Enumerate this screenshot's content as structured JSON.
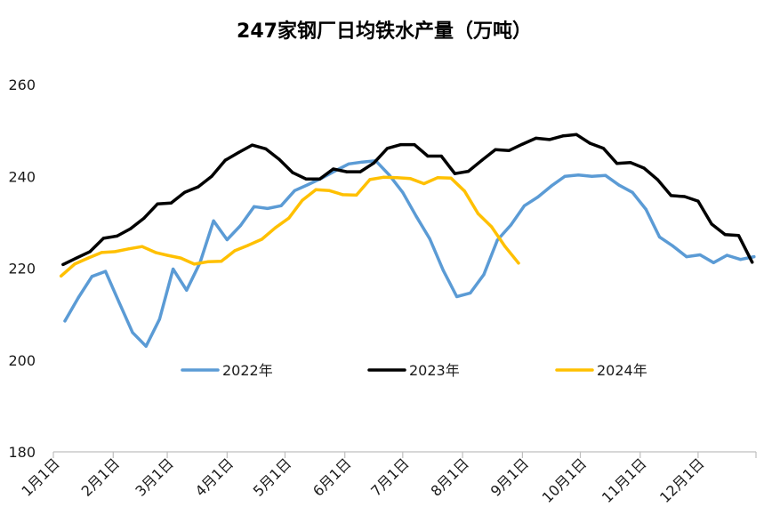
{
  "chart_data": {
    "type": "line",
    "title": "247家钢厂日均铁水产量（万吨）",
    "xlabel": "",
    "ylabel": "",
    "xlim": [
      "01-01",
      "12-31"
    ],
    "ylim": [
      180,
      260
    ],
    "yticks": [
      180,
      200,
      220,
      240,
      260
    ],
    "xticks": [
      "1月1日",
      "2月1日",
      "3月1日",
      "4月1日",
      "5月1日",
      "6月1日",
      "7月1日",
      "8月1日",
      "9月1日",
      "10月1日",
      "11月1日",
      "12月1日"
    ],
    "grid": false,
    "legend": "bottom-center",
    "series": [
      {
        "name": "2022年",
        "color": "#5B9BD5",
        "x": [
          "2022-01-07",
          "2022-01-14",
          "2022-01-21",
          "2022-01-28",
          "2022-02-04",
          "2022-02-11",
          "2022-02-18",
          "2022-02-25",
          "2022-03-04",
          "2022-03-11",
          "2022-03-18",
          "2022-03-25",
          "2022-04-01",
          "2022-04-08",
          "2022-04-15",
          "2022-04-22",
          "2022-04-29",
          "2022-05-06",
          "2022-05-13",
          "2022-05-20",
          "2022-05-27",
          "2022-06-03",
          "2022-06-10",
          "2022-06-17",
          "2022-06-24",
          "2022-07-01",
          "2022-07-08",
          "2022-07-15",
          "2022-07-22",
          "2022-07-29",
          "2022-08-05",
          "2022-08-12",
          "2022-08-19",
          "2022-08-26",
          "2022-09-02",
          "2022-09-09",
          "2022-09-16",
          "2022-09-23",
          "2022-09-30",
          "2022-10-07",
          "2022-10-14",
          "2022-10-21",
          "2022-10-28",
          "2022-11-04",
          "2022-11-11",
          "2022-11-18",
          "2022-11-25",
          "2022-12-02",
          "2022-12-09",
          "2022-12-16",
          "2022-12-23",
          "2022-12-30"
        ],
        "y": [
          208.5,
          213.6,
          218.2,
          219.3,
          212.6,
          206.0,
          203.0,
          208.9,
          219.8,
          215.2,
          221.2,
          230.3,
          226.2,
          229.3,
          233.4,
          233.0,
          233.6,
          236.9,
          238.2,
          239.6,
          241.2,
          242.7,
          243.1,
          243.4,
          240.3,
          236.5,
          231.3,
          226.4,
          219.5,
          213.8,
          214.6,
          218.6,
          226.1,
          229.4,
          233.6,
          235.5,
          237.9,
          240.0,
          240.3,
          240.0,
          240.2,
          238.1,
          236.5,
          232.8,
          226.8,
          224.8,
          222.5,
          222.9,
          221.2,
          222.8,
          221.9,
          222.5
        ]
      },
      {
        "name": "2023年",
        "color": "#000000",
        "x": [
          "2023-01-06",
          "2023-01-13",
          "2023-01-20",
          "2023-01-27",
          "2023-02-03",
          "2023-02-10",
          "2023-02-17",
          "2023-02-24",
          "2023-03-03",
          "2023-03-10",
          "2023-03-17",
          "2023-03-24",
          "2023-03-31",
          "2023-04-07",
          "2023-04-14",
          "2023-04-21",
          "2023-04-28",
          "2023-05-05",
          "2023-05-12",
          "2023-05-19",
          "2023-05-26",
          "2023-06-02",
          "2023-06-09",
          "2023-06-16",
          "2023-06-23",
          "2023-06-30",
          "2023-07-07",
          "2023-07-14",
          "2023-07-21",
          "2023-07-28",
          "2023-08-04",
          "2023-08-11",
          "2023-08-18",
          "2023-08-25",
          "2023-09-01",
          "2023-09-08",
          "2023-09-15",
          "2023-09-22",
          "2023-09-29",
          "2023-10-06",
          "2023-10-13",
          "2023-10-20",
          "2023-10-27",
          "2023-11-03",
          "2023-11-10",
          "2023-11-17",
          "2023-11-24",
          "2023-12-01",
          "2023-12-08",
          "2023-12-15",
          "2023-12-22",
          "2023-12-29"
        ],
        "y": [
          220.8,
          222.2,
          223.6,
          226.5,
          227.0,
          228.6,
          230.9,
          234.0,
          234.2,
          236.5,
          237.7,
          240.0,
          243.5,
          245.2,
          246.8,
          246.0,
          243.7,
          240.8,
          239.4,
          239.4,
          241.6,
          241.0,
          241.0,
          242.9,
          246.1,
          246.9,
          246.9,
          244.4,
          244.4,
          240.6,
          241.1,
          243.5,
          245.8,
          245.6,
          247.0,
          248.3,
          248.0,
          248.8,
          249.1,
          247.2,
          246.1,
          242.8,
          243.0,
          241.8,
          239.3,
          235.8,
          235.6,
          234.6,
          229.6,
          227.3,
          227.1,
          221.3
        ]
      },
      {
        "name": "2024年",
        "color": "#FFC000",
        "x": [
          "2024-01-05",
          "2024-01-12",
          "2024-01-19",
          "2024-01-26",
          "2024-02-02",
          "2024-02-09",
          "2024-02-16",
          "2024-02-23",
          "2024-03-01",
          "2024-03-08",
          "2024-03-15",
          "2024-03-22",
          "2024-03-29",
          "2024-04-05",
          "2024-04-12",
          "2024-04-19",
          "2024-04-26",
          "2024-05-03",
          "2024-05-10",
          "2024-05-17",
          "2024-05-24",
          "2024-05-31",
          "2024-06-07",
          "2024-06-14",
          "2024-06-21",
          "2024-06-28",
          "2024-07-05",
          "2024-07-12",
          "2024-07-19",
          "2024-07-26",
          "2024-08-02",
          "2024-08-09",
          "2024-08-16",
          "2024-08-23",
          "2024-08-30"
        ],
        "y": [
          218.3,
          220.9,
          222.2,
          223.4,
          223.6,
          224.2,
          224.7,
          223.4,
          222.8,
          222.2,
          220.9,
          221.4,
          221.5,
          223.8,
          225.0,
          226.3,
          228.8,
          230.9,
          234.8,
          237.1,
          236.9,
          236.0,
          235.9,
          239.3,
          239.8,
          239.7,
          239.5,
          238.4,
          239.7,
          239.6,
          236.8,
          231.9,
          229.0,
          224.7,
          221.1
        ]
      }
    ]
  }
}
